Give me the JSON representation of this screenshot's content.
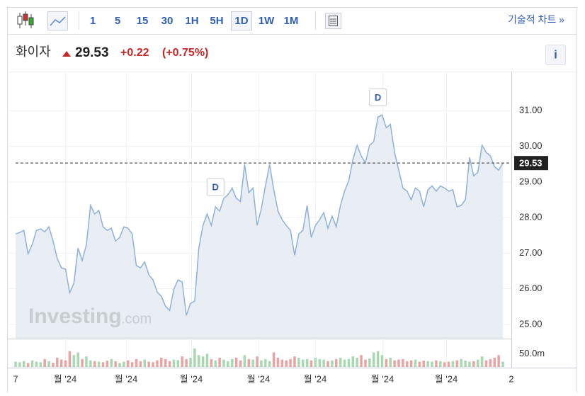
{
  "toolbar": {
    "intervals": [
      "1",
      "5",
      "15",
      "30",
      "1H",
      "5H",
      "1D",
      "1W",
      "1M"
    ],
    "selected": "1D",
    "tech_chart": "기술적 차트 »"
  },
  "header": {
    "name": "화이자",
    "change": "+0.22",
    "change_pct": "(+0.75%)",
    "info": "i"
  },
  "logo": {
    "brand": "Investing",
    "suffix": ".com"
  },
  "chart_data": {
    "type": "line",
    "last_price": 29.53,
    "line_color": "#8fb1d8",
    "fill_color": "#e9eef5",
    "values": [
      27.54,
      27.58,
      27.64,
      26.98,
      27.24,
      27.64,
      27.68,
      27.6,
      27.74,
      27.34,
      26.85,
      26.59,
      26.55,
      25.89,
      26.15,
      27.14,
      26.79,
      27.24,
      28.34,
      28.1,
      28.2,
      27.74,
      27.64,
      27.7,
      27.34,
      27.44,
      27.74,
      27.7,
      27.54,
      26.65,
      26.59,
      26.75,
      26.39,
      26.25,
      25.91,
      25.79,
      25.51,
      25.39,
      25.99,
      26.25,
      26.19,
      25.25,
      25.59,
      25.65,
      27.14,
      27.78,
      28.1,
      27.78,
      28.3,
      28.18,
      28.54,
      28.64,
      28.83,
      28.54,
      28.45,
      29.49,
      28.7,
      28.83,
      27.78,
      28.24,
      28.89,
      29.49,
      28.78,
      28.18,
      27.94,
      27.78,
      27.64,
      26.94,
      27.54,
      27.64,
      28.34,
      27.44,
      27.78,
      27.94,
      28.14,
      27.7,
      28.04,
      27.74,
      28.34,
      28.74,
      29.03,
      29.63,
      30.03,
      29.73,
      29.53,
      30.03,
      30.13,
      30.82,
      30.88,
      30.52,
      30.62,
      29.83,
      29.33,
      28.83,
      28.74,
      28.5,
      28.83,
      28.74,
      28.3,
      28.78,
      28.89,
      28.74,
      28.89,
      28.83,
      28.74,
      28.78,
      28.3,
      28.34,
      28.5,
      29.69,
      29.17,
      29.27,
      30.03,
      29.83,
      29.73,
      29.43,
      29.33,
      29.53
    ],
    "volume": [
      20,
      18,
      22,
      15,
      25,
      20,
      18,
      30,
      22,
      16,
      35,
      28,
      25,
      60,
      45,
      55,
      30,
      40,
      25,
      22,
      20,
      18,
      24,
      30,
      22,
      15,
      20,
      25,
      18,
      30,
      22,
      28,
      20,
      18,
      25,
      35,
      30,
      22,
      28,
      26,
      40,
      30,
      35,
      70,
      45,
      40,
      50,
      30,
      25,
      35,
      28,
      22,
      30,
      35,
      25,
      45,
      30,
      28,
      40,
      25,
      30,
      22,
      55,
      35,
      28,
      25,
      30,
      40,
      35,
      28,
      30,
      25,
      35,
      30,
      28,
      22,
      25,
      30,
      35,
      28,
      30,
      40,
      35,
      45,
      28,
      32,
      55,
      60,
      45,
      30,
      35,
      25,
      28,
      30,
      22,
      25,
      28,
      20,
      24,
      22,
      20,
      25,
      22,
      18,
      20,
      22,
      25,
      30,
      24,
      20,
      22,
      28,
      40,
      25,
      30,
      35,
      45,
      20
    ],
    "up_color": "#a8d8b2",
    "down_color": "#e9a3a3",
    "ylim": [
      24.6,
      32.1
    ],
    "yticks": [
      {
        "value": 25,
        "label": "25.00"
      },
      {
        "value": 26,
        "label": "26.00"
      },
      {
        "value": 27,
        "label": "27.00"
      },
      {
        "value": 28,
        "label": "28.00"
      },
      {
        "value": 29,
        "label": "29.00"
      },
      {
        "value": 30,
        "label": "30.00"
      },
      {
        "value": 31,
        "label": "31.00"
      }
    ],
    "vlim": [
      0,
      105
    ],
    "vticks": [
      {
        "value": 50,
        "label": "50.0m"
      }
    ],
    "xlabels": [
      "7",
      "월 '24",
      "월 '24",
      "월 '24",
      "월 '24",
      "월 '24",
      "월 '24",
      "월 '24",
      "2"
    ],
    "dividends": [
      {
        "label": "D",
        "index": 48
      },
      {
        "label": "D",
        "index": 87
      }
    ]
  }
}
